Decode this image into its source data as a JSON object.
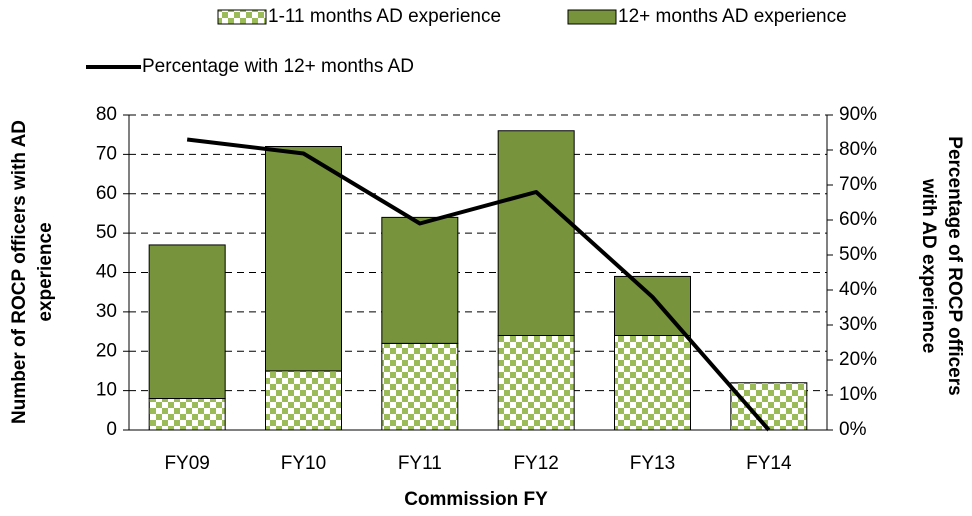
{
  "chart_data": {
    "type": "bar",
    "stacked": true,
    "categories": [
      "FY09",
      "FY10",
      "FY11",
      "FY12",
      "FY13",
      "FY14"
    ],
    "series": [
      {
        "name": "1-11 months AD experience",
        "color": "#9bbb59",
        "fill_pattern": "checkerboard",
        "values": [
          8,
          15,
          22,
          24,
          24,
          12
        ]
      },
      {
        "name": "12+ months AD experience",
        "color": "#77933c",
        "values": [
          39,
          57,
          32,
          52,
          15,
          0
        ]
      },
      {
        "name": "Percentage with 12+ months AD",
        "type": "line",
        "axis": "y2",
        "color": "#000000",
        "values": [
          83,
          79,
          59,
          68,
          38,
          0
        ]
      }
    ],
    "xlabel": "Commission FY",
    "ylabel": [
      "Number of ROCP officers with AD",
      "experience"
    ],
    "y2label": [
      "Percentage of ROCP officers",
      "with AD experience"
    ],
    "ylim": [
      0,
      80
    ],
    "yticks": [
      0,
      10,
      20,
      30,
      40,
      50,
      60,
      70,
      80
    ],
    "y2lim": [
      0,
      90
    ],
    "y2ticks": [
      {
        "value": 0,
        "label": "0%"
      },
      {
        "value": 10,
        "label": "10%"
      },
      {
        "value": 20,
        "label": "20%"
      },
      {
        "value": 30,
        "label": "30%"
      },
      {
        "value": 40,
        "label": "40%"
      },
      {
        "value": 50,
        "label": "50%"
      },
      {
        "value": 60,
        "label": "60%"
      },
      {
        "value": 70,
        "label": "70%"
      },
      {
        "value": 80,
        "label": "80%"
      },
      {
        "value": 90,
        "label": "90%"
      }
    ],
    "grid": true,
    "grid_style": "dashed"
  }
}
